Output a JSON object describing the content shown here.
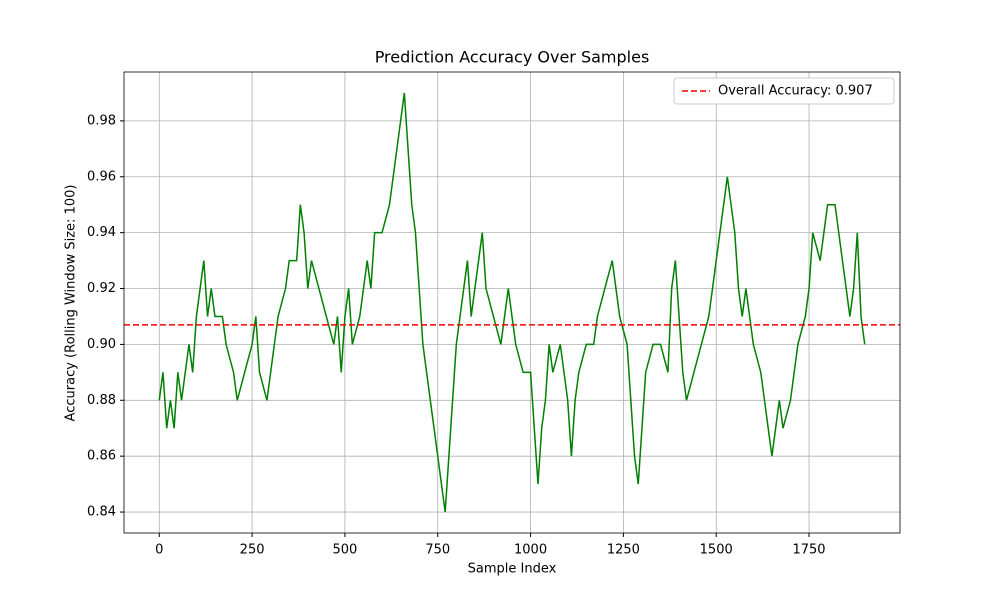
{
  "chart_data": {
    "type": "line",
    "title": "Prediction Accuracy Over Samples",
    "xlabel": "Sample Index",
    "ylabel": "Accuracy (Rolling Window Size: 100)",
    "x": [
      0,
      10,
      20,
      30,
      40,
      50,
      60,
      70,
      80,
      90,
      100,
      110,
      120,
      130,
      140,
      150,
      170,
      180,
      200,
      210,
      230,
      250,
      260,
      270,
      290,
      300,
      310,
      320,
      340,
      350,
      370,
      380,
      390,
      400,
      410,
      430,
      450,
      470,
      480,
      490,
      500,
      510,
      520,
      540,
      560,
      570,
      580,
      600,
      620,
      630,
      640,
      660,
      670,
      680,
      690,
      700,
      710,
      720,
      740,
      750,
      770,
      780,
      790,
      800,
      810,
      820,
      830,
      840,
      860,
      870,
      880,
      900,
      920,
      940,
      950,
      960,
      980,
      1000,
      1010,
      1020,
      1030,
      1040,
      1050,
      1060,
      1080,
      1090,
      1100,
      1110,
      1120,
      1130,
      1150,
      1170,
      1180,
      1200,
      1220,
      1240,
      1260,
      1270,
      1280,
      1290,
      1300,
      1310,
      1330,
      1350,
      1370,
      1380,
      1390,
      1400,
      1410,
      1420,
      1440,
      1460,
      1480,
      1490,
      1500,
      1510,
      1520,
      1530,
      1540,
      1550,
      1560,
      1570,
      1580,
      1600,
      1620,
      1640,
      1650,
      1660,
      1670,
      1680,
      1700,
      1710,
      1720,
      1740,
      1750,
      1760,
      1780,
      1790,
      1800,
      1820,
      1840,
      1850,
      1860,
      1870,
      1880,
      1890,
      1900
    ],
    "series": [
      {
        "name": "Accuracy",
        "color": "green",
        "values": [
          0.88,
          0.89,
          0.87,
          0.88,
          0.87,
          0.89,
          0.88,
          0.89,
          0.9,
          0.89,
          0.91,
          0.92,
          0.93,
          0.91,
          0.92,
          0.91,
          0.91,
          0.9,
          0.89,
          0.88,
          0.89,
          0.9,
          0.91,
          0.89,
          0.88,
          0.89,
          0.9,
          0.91,
          0.92,
          0.93,
          0.93,
          0.95,
          0.94,
          0.92,
          0.93,
          0.92,
          0.91,
          0.9,
          0.91,
          0.89,
          0.91,
          0.92,
          0.9,
          0.91,
          0.93,
          0.92,
          0.94,
          0.94,
          0.95,
          0.96,
          0.97,
          0.99,
          0.97,
          0.95,
          0.94,
          0.92,
          0.9,
          0.89,
          0.87,
          0.86,
          0.84,
          0.86,
          0.88,
          0.9,
          0.91,
          0.92,
          0.93,
          0.91,
          0.93,
          0.94,
          0.92,
          0.91,
          0.9,
          0.92,
          0.91,
          0.9,
          0.89,
          0.89,
          0.87,
          0.85,
          0.87,
          0.88,
          0.9,
          0.89,
          0.9,
          0.89,
          0.88,
          0.86,
          0.88,
          0.89,
          0.9,
          0.9,
          0.91,
          0.92,
          0.93,
          0.91,
          0.9,
          0.88,
          0.86,
          0.85,
          0.87,
          0.89,
          0.9,
          0.9,
          0.89,
          0.92,
          0.93,
          0.91,
          0.89,
          0.88,
          0.89,
          0.9,
          0.91,
          0.92,
          0.93,
          0.94,
          0.95,
          0.96,
          0.95,
          0.94,
          0.92,
          0.91,
          0.92,
          0.9,
          0.89,
          0.87,
          0.86,
          0.87,
          0.88,
          0.87,
          0.88,
          0.89,
          0.9,
          0.91,
          0.92,
          0.94,
          0.93,
          0.94,
          0.95,
          0.95,
          0.93,
          0.92,
          0.91,
          0.92,
          0.94,
          0.91,
          0.9
        ]
      }
    ],
    "hline": {
      "value": 0.907,
      "label": "Overall Accuracy: 0.907",
      "color": "red"
    },
    "xlim": [
      -95,
      1995
    ],
    "ylim": [
      0.8325,
      0.9975
    ],
    "xticks": [
      0,
      250,
      500,
      750,
      1000,
      1250,
      1500,
      1750
    ],
    "yticks": [
      0.84,
      0.86,
      0.88,
      {
        "value": 0.9,
        "label": "0.90"
      },
      0.92,
      0.94,
      0.96,
      0.98
    ],
    "grid": true,
    "legend": "upper right"
  }
}
